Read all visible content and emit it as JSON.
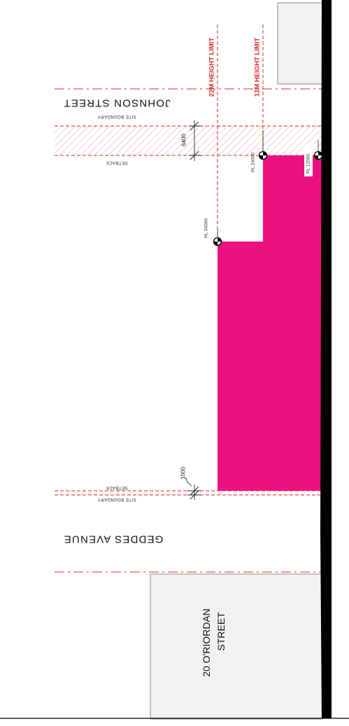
{
  "streets": {
    "johnson": "JOHNSON STREET",
    "geddes": "GEDDES AVENUE"
  },
  "neighbour": {
    "line1": "20 O'RIORDAN",
    "line2": "STREET"
  },
  "labels": {
    "site_boundary": "SITE BOUNDARY",
    "setback": "SETBACK",
    "height_22": "22M HEIGHT LIMIT",
    "height_12": "12M HEIGHT LIMIT"
  },
  "dimensions": {
    "johnson_setback": "6400",
    "geddes_setback": "1000"
  },
  "levels": {
    "rl_34": "RL 34000",
    "rl_24": "RL 24000",
    "rl_12": "RL 12000"
  },
  "colors": {
    "massing": "#ec1181",
    "limit_line": "#e02828",
    "hatch": "#e8a0a0",
    "neighbour_fill": "#f1f1f1",
    "boundary": "#000000"
  }
}
